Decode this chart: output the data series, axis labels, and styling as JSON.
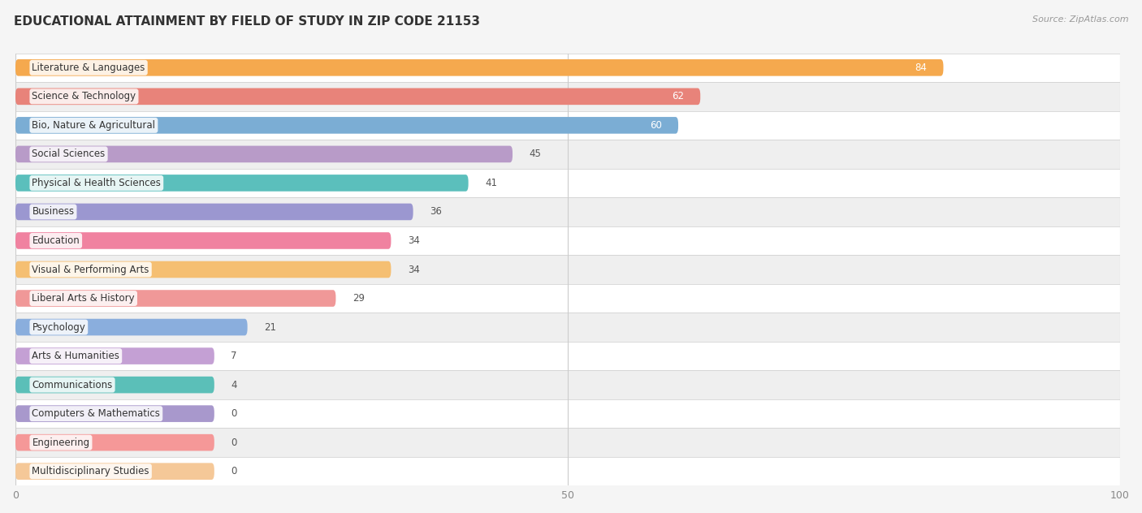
{
  "title": "EDUCATIONAL ATTAINMENT BY FIELD OF STUDY IN ZIP CODE 21153",
  "source": "Source: ZipAtlas.com",
  "categories": [
    "Literature & Languages",
    "Science & Technology",
    "Bio, Nature & Agricultural",
    "Social Sciences",
    "Physical & Health Sciences",
    "Business",
    "Education",
    "Visual & Performing Arts",
    "Liberal Arts & History",
    "Psychology",
    "Arts & Humanities",
    "Communications",
    "Computers & Mathematics",
    "Engineering",
    "Multidisciplinary Studies"
  ],
  "values": [
    84,
    62,
    60,
    45,
    41,
    36,
    34,
    34,
    29,
    21,
    7,
    4,
    0,
    0,
    0
  ],
  "bar_colors": [
    "#F5A94E",
    "#E8837A",
    "#7BADD4",
    "#B89BC8",
    "#5BBFBC",
    "#9B97D0",
    "#F082A0",
    "#F5BF72",
    "#F09898",
    "#8AAEDD",
    "#C4A0D4",
    "#5BBFB8",
    "#A898CC",
    "#F59898",
    "#F5C898"
  ],
  "xlim": [
    0,
    100
  ],
  "xticks": [
    0,
    50,
    100
  ],
  "background_color": "#f5f5f5",
  "row_colors": [
    "#ffffff",
    "#efefef"
  ],
  "title_fontsize": 11,
  "source_fontsize": 8,
  "label_fontsize": 8.5,
  "value_fontsize": 8.5,
  "bar_height": 0.58,
  "min_bar_width": 18
}
